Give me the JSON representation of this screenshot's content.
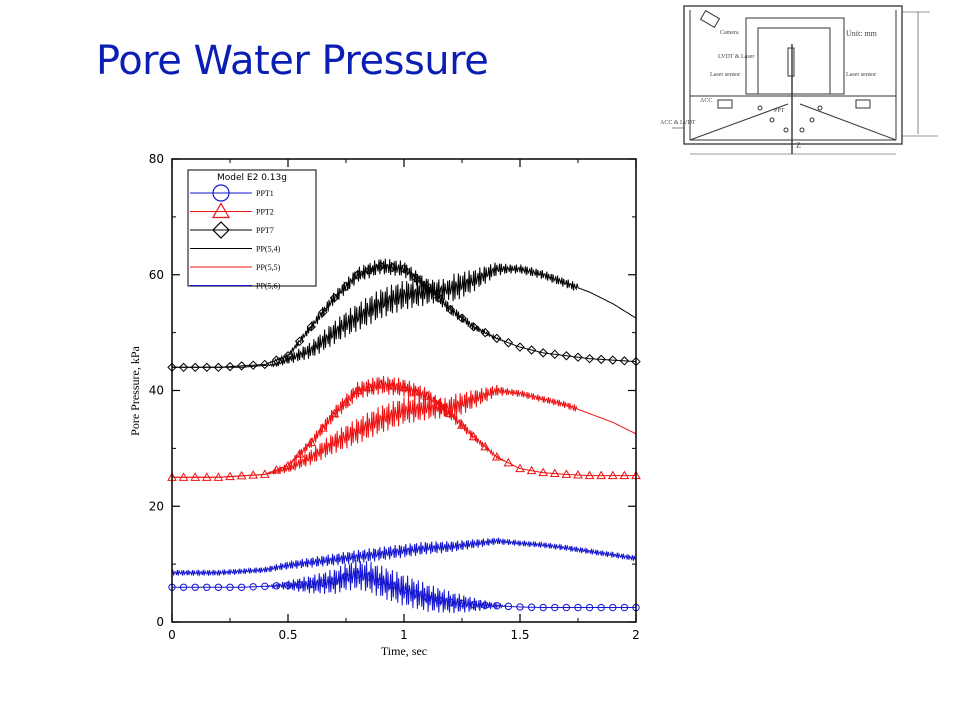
{
  "slide": {
    "title": "Pore Water Pressure"
  },
  "colors": {
    "title": "#0b1eb3",
    "blue": "#1515d0",
    "red": "#ee1111",
    "black": "#000000"
  },
  "chart_data": {
    "type": "line",
    "xlabel": "Time, sec",
    "ylabel": "Pore Pressure, kPa",
    "xlim": [
      0,
      2
    ],
    "ylim": [
      0,
      80
    ],
    "xticks": [
      0,
      0.5,
      1,
      1.5,
      2
    ],
    "xtick_labels": [
      "0",
      "0.5",
      "1",
      "1.5",
      "2"
    ],
    "yticks": [
      0,
      20,
      40,
      60,
      80
    ],
    "ytick_labels": [
      "0",
      "20",
      "40",
      "60",
      "80"
    ],
    "legend": {
      "title": "Model E2 0.13g",
      "placement": "top-left",
      "entries": [
        "PPT1",
        "PPT2",
        "PPT7",
        "PP(5,4)",
        "PP(5,5)",
        "PP(5,6)"
      ]
    },
    "series": [
      {
        "name": "PPT1",
        "color": "#1515d0",
        "marker": "circle",
        "x": [
          0,
          0.3,
          0.6,
          0.7,
          0.75,
          0.8,
          0.85,
          0.9,
          1.0,
          1.1,
          1.2,
          1.3,
          1.4,
          1.5,
          1.6,
          1.7,
          1.8,
          1.9,
          2.0
        ],
        "y": [
          6,
          6,
          6.5,
          7,
          7.8,
          8.2,
          7.8,
          7,
          5.5,
          4.2,
          3.4,
          3.0,
          2.8,
          2.6,
          2.5,
          2.5,
          2.5,
          2.5,
          2.5
        ]
      },
      {
        "name": "PPT2",
        "color": "#ee1111",
        "marker": "triangle",
        "x": [
          0,
          0.2,
          0.4,
          0.5,
          0.6,
          0.7,
          0.8,
          0.9,
          1.0,
          1.1,
          1.2,
          1.3,
          1.4,
          1.5,
          1.6,
          1.7,
          1.8,
          2.0
        ],
        "y": [
          25,
          25,
          25.5,
          27,
          31,
          36,
          40,
          41,
          40.5,
          39,
          36,
          32,
          28.5,
          26.5,
          25.8,
          25.5,
          25.3,
          25.3
        ]
      },
      {
        "name": "PPT7",
        "color": "#000000",
        "marker": "diamond",
        "x": [
          0,
          0.2,
          0.4,
          0.5,
          0.6,
          0.7,
          0.8,
          0.9,
          1.0,
          1.1,
          1.2,
          1.3,
          1.4,
          1.5,
          1.6,
          1.7,
          1.8,
          2.0
        ],
        "y": [
          44,
          44,
          44.5,
          46,
          51,
          56,
          60,
          61.5,
          61,
          58,
          54,
          51,
          49,
          47.5,
          46.5,
          46,
          45.5,
          45
        ]
      },
      {
        "name": "PP(5,4)",
        "color": "#000000",
        "marker": "none",
        "x": [
          0,
          0.3,
          0.45,
          0.6,
          0.75,
          0.9,
          1.0,
          1.1,
          1.2,
          1.3,
          1.4,
          1.5,
          1.6,
          1.7,
          1.8,
          1.9,
          2.0
        ],
        "y": [
          44,
          44,
          44.5,
          47,
          51.5,
          55,
          56.5,
          57,
          57.5,
          59,
          61,
          61,
          60,
          58.5,
          57,
          55,
          52.5
        ]
      },
      {
        "name": "PP(5,5)",
        "color": "#ee1111",
        "marker": "none",
        "x": [
          0,
          0.2,
          0.4,
          0.5,
          0.6,
          0.7,
          0.8,
          0.9,
          1.0,
          1.1,
          1.2,
          1.3,
          1.4,
          1.5,
          1.6,
          1.7,
          1.8,
          1.9,
          2.0
        ],
        "y": [
          25,
          25,
          25.5,
          26.5,
          28.5,
          31,
          33,
          35,
          36.5,
          37,
          37,
          38.5,
          40,
          39.5,
          38.5,
          37.5,
          36,
          34.5,
          32.5
        ]
      },
      {
        "name": "PP(5,6)",
        "color": "#1515d0",
        "marker": "none",
        "x": [
          0,
          0.2,
          0.4,
          0.5,
          0.6,
          0.7,
          0.8,
          0.9,
          1.0,
          1.1,
          1.2,
          1.3,
          1.4,
          1.5,
          1.6,
          1.7,
          1.8,
          1.9,
          2.0
        ],
        "y": [
          8.5,
          8.5,
          9,
          9.8,
          10.3,
          10.8,
          11.3,
          11.8,
          12.3,
          12.8,
          13,
          13.5,
          14,
          13.6,
          13.3,
          12.8,
          12.2,
          11.6,
          11
        ]
      }
    ]
  },
  "schematic": {
    "labels": [
      "Unit: mm",
      "Camera",
      "LVDT & Laser",
      "Laser sensor",
      "Laser sensor",
      "ACC & LVDT",
      "ACC",
      "PPT",
      "Z"
    ]
  }
}
